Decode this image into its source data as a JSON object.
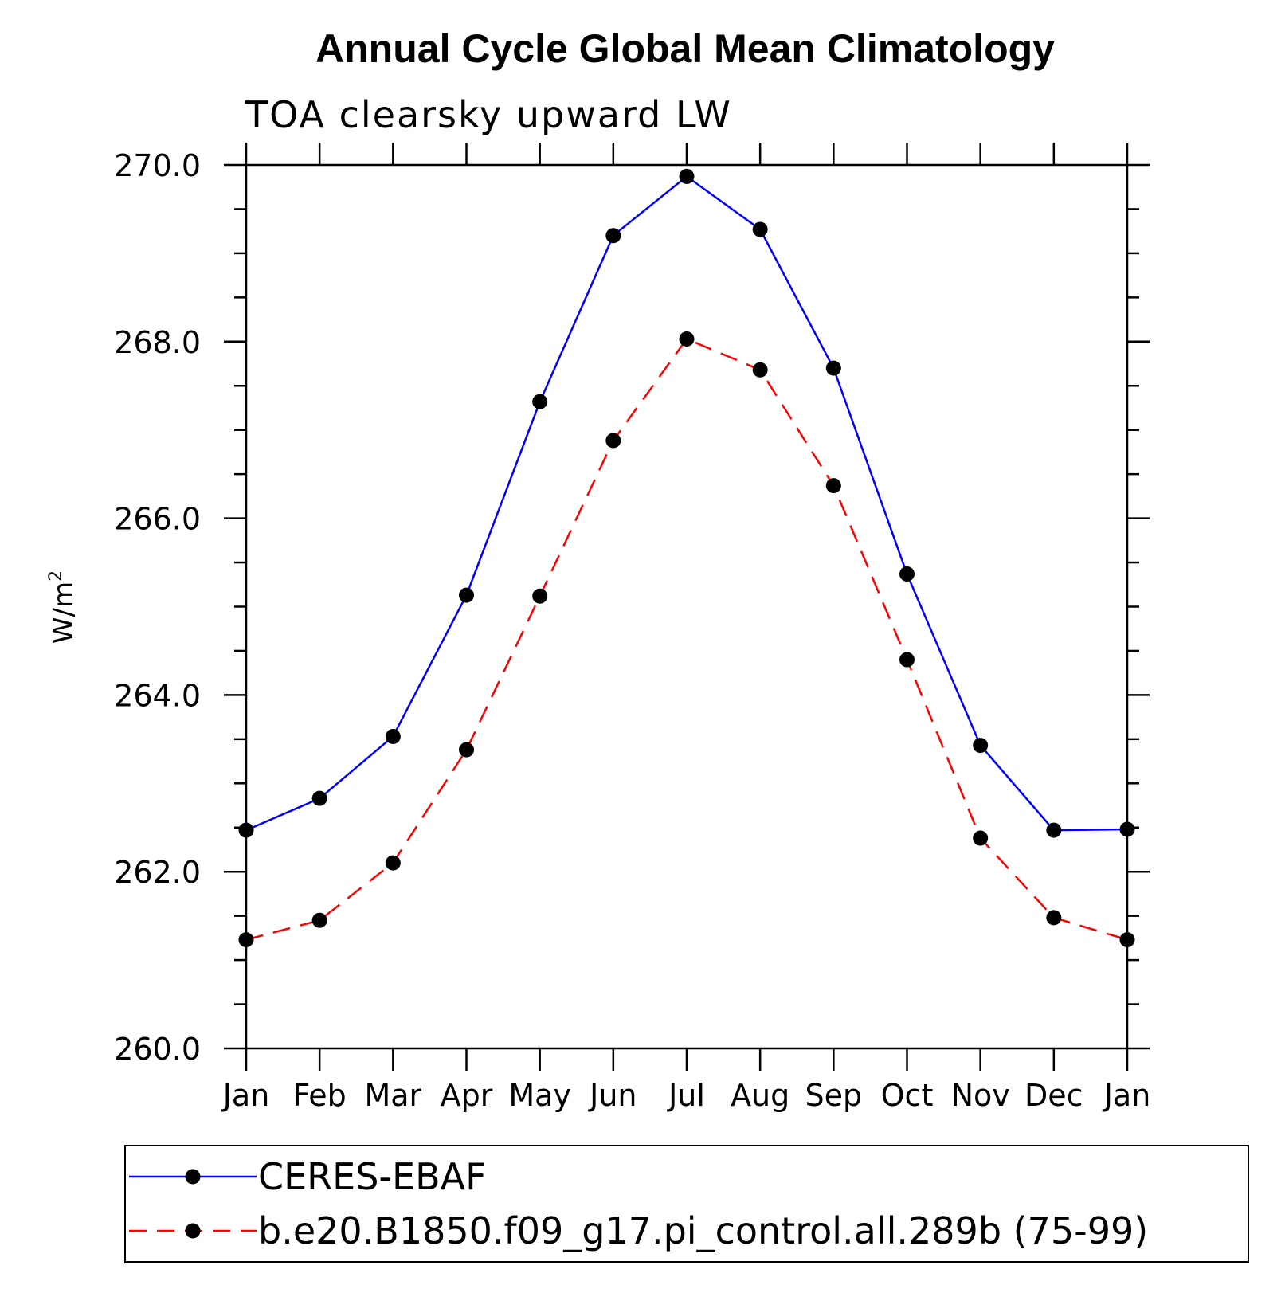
{
  "chart_data": {
    "type": "line",
    "title": "Annual Cycle Global Mean Climatology",
    "subtitle": "TOA clearsky upward LW",
    "xlabel": "",
    "ylabel": "W/m",
    "ylabel_superscript": "2",
    "categories": [
      "Jan",
      "Feb",
      "Mar",
      "Apr",
      "May",
      "Jun",
      "Jul",
      "Aug",
      "Sep",
      "Oct",
      "Nov",
      "Dec",
      "Jan"
    ],
    "ylim": [
      260.0,
      270.0
    ],
    "yticks": [
      "260.0",
      "262.0",
      "264.0",
      "266.0",
      "268.0",
      "270.0"
    ],
    "grid": false,
    "legend_placement": "bottom",
    "series": [
      {
        "name": "CERES-EBAF",
        "color": "#0000ff",
        "dashed": false,
        "values": [
          262.47,
          262.83,
          263.53,
          265.13,
          267.32,
          269.2,
          269.87,
          269.27,
          267.7,
          265.37,
          263.43,
          262.47,
          262.48
        ]
      },
      {
        "name": "b.e20.B1850.f09_g17.pi_control.all.289b (75-99)",
        "color": "#ff0000",
        "dashed": true,
        "values": [
          261.23,
          261.45,
          262.1,
          263.38,
          265.12,
          266.88,
          268.03,
          267.68,
          266.37,
          264.4,
          262.38,
          261.48,
          261.23
        ]
      }
    ]
  }
}
